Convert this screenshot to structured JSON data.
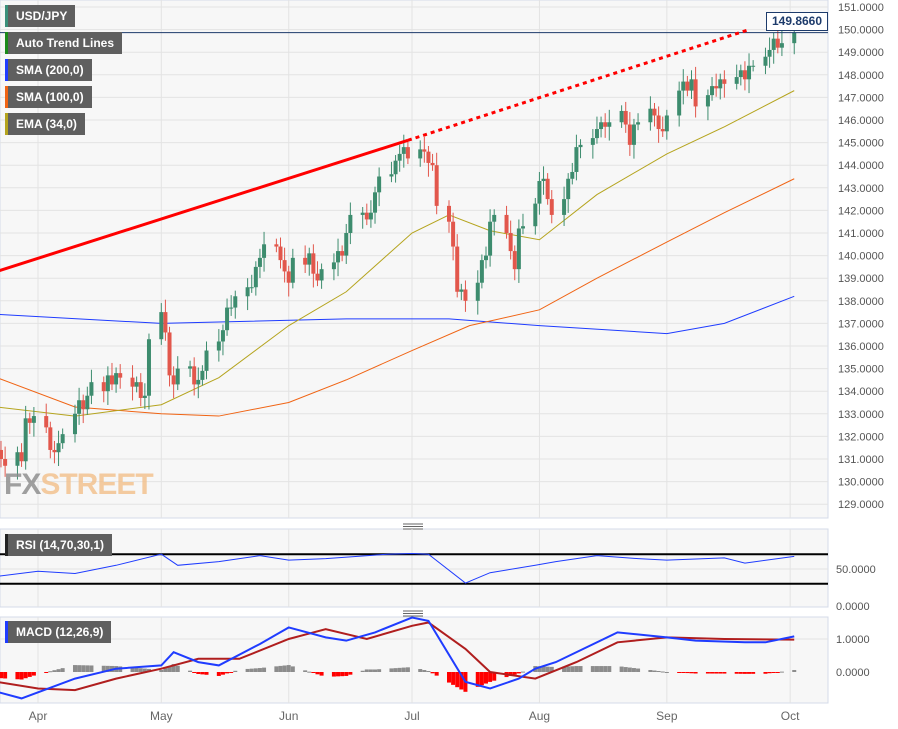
{
  "chart_data": {
    "type": "candlestick",
    "symbol": "USD/JPY",
    "start_date": "2023-03-22",
    "closes": [
      131.4,
      131.0,
      130.7,
      131.3,
      130.9,
      132.8,
      132.6,
      132.9,
      132.4,
      131.4,
      131.3,
      131.7,
      132.1,
      133.0,
      133.6,
      133.2,
      133.8,
      134.4,
      134.0,
      134.7,
      134.3,
      134.8,
      134.6,
      134.2,
      134.4,
      133.7,
      133.8,
      136.3,
      137.5,
      136.6,
      134.7,
      134.3,
      135.0,
      135.1,
      134.3,
      134.5,
      134.9,
      135.8,
      136.2,
      136.7,
      137.7,
      137.7,
      138.2,
      138.6,
      138.6,
      139.5,
      139.9,
      140.5,
      140.4,
      139.8,
      139.3,
      138.8,
      139.9,
      139.6,
      140.1,
      139.2,
      138.9,
      139.4,
      139.7,
      140.2,
      140.0,
      141.0,
      141.8,
      141.9,
      141.6,
      141.9,
      142.8,
      143.5,
      143.6,
      144.2,
      144.5,
      144.8,
      144.3,
      144.7,
      144.6,
      144.1,
      144.0,
      142.2,
      141.5,
      140.4,
      138.4,
      138.5,
      138.0,
      138.8,
      139.8,
      140.0,
      141.5,
      141.8,
      141.0,
      140.2,
      139.4,
      141.2,
      141.3,
      142.3,
      143.3,
      143.4,
      142.5,
      141.8,
      142.5,
      143.4,
      143.7,
      144.8,
      144.9,
      145.2,
      145.6,
      145.9,
      145.7,
      145.9,
      146.4,
      145.8,
      144.9,
      145.8,
      145.9,
      146.5,
      146.2,
      145.6,
      145.5,
      146.2,
      147.3,
      147.7,
      147.3,
      147.8,
      146.6,
      147.1,
      147.5,
      147.4,
      147.8,
      147.6,
      147.9,
      148.2,
      147.8,
      148.4,
      148.4,
      148.8,
      149.1,
      149.6,
      149.2,
      149.4,
      149.866
    ],
    "last_price": "149.8660",
    "price_axis": {
      "ylim": [
        128.5,
        151.3
      ],
      "ticks": [
        "151.0000",
        "150.0000",
        "149.0000",
        "148.0000",
        "147.0000",
        "146.0000",
        "145.0000",
        "144.0000",
        "143.0000",
        "142.0000",
        "141.0000",
        "140.0000",
        "139.0000",
        "138.0000",
        "137.0000",
        "136.0000",
        "135.0000",
        "134.0000",
        "133.0000",
        "132.0000",
        "131.0000",
        "130.0000",
        "129.0000"
      ]
    },
    "x_axis": {
      "ticks": [
        {
          "label": "Apr",
          "date": "2023-04-01"
        },
        {
          "label": "May",
          "date": "2023-05-01"
        },
        {
          "label": "Jun",
          "date": "2023-06-01"
        },
        {
          "label": "Jul",
          "date": "2023-07-01"
        },
        {
          "label": "Aug",
          "date": "2023-08-01"
        },
        {
          "label": "Sep",
          "date": "2023-09-01"
        },
        {
          "label": "Oct",
          "date": "2023-10-01"
        }
      ]
    },
    "trend_line": {
      "name": "Auto Trend Lines",
      "color": "#ff0000",
      "solid": [
        [
          "2023-03-22",
          139.3
        ],
        [
          "2023-06-30",
          145.1
        ]
      ],
      "dotted": [
        [
          "2023-06-30",
          145.1
        ],
        [
          "2023-09-21",
          150.0
        ]
      ]
    },
    "overlays": [
      {
        "name": "SMA (200,0)",
        "color": "#1f3cff",
        "points": [
          [
            "2023-03-22",
            137.4
          ],
          [
            "2023-05-01",
            137.0
          ],
          [
            "2023-06-15",
            137.2
          ],
          [
            "2023-07-10",
            137.2
          ],
          [
            "2023-08-01",
            136.9
          ],
          [
            "2023-09-01",
            136.55
          ],
          [
            "2023-09-15",
            137.0
          ],
          [
            "2023-10-02",
            138.2
          ]
        ]
      },
      {
        "name": "SMA (100,0)",
        "color": "#f06414",
        "points": [
          [
            "2023-03-22",
            134.6
          ],
          [
            "2023-04-10",
            133.3
          ],
          [
            "2023-05-01",
            133.0
          ],
          [
            "2023-05-15",
            132.9
          ],
          [
            "2023-06-01",
            133.5
          ],
          [
            "2023-06-15",
            134.5
          ],
          [
            "2023-07-01",
            135.8
          ],
          [
            "2023-07-15",
            136.9
          ],
          [
            "2023-08-01",
            137.6
          ],
          [
            "2023-08-15",
            139.0
          ],
          [
            "2023-09-01",
            140.6
          ],
          [
            "2023-09-15",
            141.9
          ],
          [
            "2023-10-02",
            143.4
          ]
        ]
      },
      {
        "name": "EMA (34,0)",
        "color": "#b5a41e",
        "points": [
          [
            "2023-03-22",
            133.3
          ],
          [
            "2023-04-10",
            132.9
          ],
          [
            "2023-05-01",
            133.4
          ],
          [
            "2023-05-15",
            134.6
          ],
          [
            "2023-06-01",
            136.9
          ],
          [
            "2023-06-15",
            138.4
          ],
          [
            "2023-07-01",
            141.0
          ],
          [
            "2023-07-10",
            141.8
          ],
          [
            "2023-07-20",
            141.1
          ],
          [
            "2023-08-01",
            140.7
          ],
          [
            "2023-08-15",
            142.7
          ],
          [
            "2023-09-01",
            144.5
          ],
          [
            "2023-09-15",
            145.7
          ],
          [
            "2023-10-02",
            147.3
          ]
        ]
      }
    ],
    "legend_colors": {
      "symbol": "#3a8f7a",
      "trend": "#1a8a1a"
    },
    "candle_colors": {
      "up": "#3d8c6e",
      "down": "#e2574c"
    },
    "rsi": {
      "name": "RSI (14,70,30,1)",
      "color": "#1f3cff",
      "levels": [
        70,
        30
      ],
      "ticks": [
        "50.0000",
        "0.0000"
      ],
      "points": [
        [
          "2023-03-22",
          40
        ],
        [
          "2023-04-01",
          47
        ],
        [
          "2023-04-10",
          44
        ],
        [
          "2023-04-20",
          55
        ],
        [
          "2023-05-01",
          70
        ],
        [
          "2023-05-05",
          55
        ],
        [
          "2023-05-15",
          60
        ],
        [
          "2023-05-25",
          68
        ],
        [
          "2023-06-01",
          62
        ],
        [
          "2023-06-10",
          64
        ],
        [
          "2023-06-25",
          70
        ],
        [
          "2023-07-01",
          71
        ],
        [
          "2023-07-05",
          70
        ],
        [
          "2023-07-14",
          31
        ],
        [
          "2023-07-20",
          45
        ],
        [
          "2023-07-31",
          55
        ],
        [
          "2023-08-05",
          60
        ],
        [
          "2023-08-15",
          68
        ],
        [
          "2023-08-25",
          64
        ],
        [
          "2023-09-01",
          62
        ],
        [
          "2023-09-15",
          65
        ],
        [
          "2023-09-20",
          58
        ],
        [
          "2023-10-02",
          67
        ]
      ]
    },
    "macd": {
      "name": "MACD (12,26,9)",
      "macd_color": "#1f3cff",
      "signal_color": "#b01e1e",
      "ticks": [
        "1.0000",
        "0.0000"
      ],
      "macd_points": [
        [
          "2023-03-22",
          -0.6
        ],
        [
          "2023-03-28",
          -0.8
        ],
        [
          "2023-04-10",
          -0.2
        ],
        [
          "2023-04-20",
          0.1
        ],
        [
          "2023-05-01",
          0.2
        ],
        [
          "2023-05-04",
          0.6
        ],
        [
          "2023-05-10",
          0.3
        ],
        [
          "2023-05-15",
          0.2
        ],
        [
          "2023-05-25",
          0.85
        ],
        [
          "2023-06-01",
          1.35
        ],
        [
          "2023-06-10",
          1.05
        ],
        [
          "2023-06-15",
          0.95
        ],
        [
          "2023-06-22",
          1.2
        ],
        [
          "2023-07-01",
          1.65
        ],
        [
          "2023-07-05",
          1.55
        ],
        [
          "2023-07-14",
          -0.3
        ],
        [
          "2023-07-20",
          -0.5
        ],
        [
          "2023-07-27",
          -0.2
        ],
        [
          "2023-07-31",
          0.1
        ],
        [
          "2023-08-05",
          0.3
        ],
        [
          "2023-08-20",
          1.2
        ],
        [
          "2023-09-01",
          1.05
        ],
        [
          "2023-09-08",
          0.95
        ],
        [
          "2023-09-20",
          0.9
        ],
        [
          "2023-09-25",
          0.9
        ],
        [
          "2023-10-02",
          1.08
        ]
      ],
      "signal_points": [
        [
          "2023-03-22",
          -0.3
        ],
        [
          "2023-04-01",
          -0.5
        ],
        [
          "2023-04-10",
          -0.55
        ],
        [
          "2023-04-20",
          -0.2
        ],
        [
          "2023-05-01",
          0.1
        ],
        [
          "2023-05-10",
          0.4
        ],
        [
          "2023-05-20",
          0.4
        ],
        [
          "2023-06-01",
          1.0
        ],
        [
          "2023-06-10",
          1.3
        ],
        [
          "2023-06-20",
          1.0
        ],
        [
          "2023-07-01",
          1.4
        ],
        [
          "2023-07-05",
          1.5
        ],
        [
          "2023-07-14",
          0.7
        ],
        [
          "2023-07-20",
          0.0
        ],
        [
          "2023-07-31",
          -0.2
        ],
        [
          "2023-08-10",
          0.3
        ],
        [
          "2023-08-20",
          0.9
        ],
        [
          "2023-09-01",
          1.05
        ],
        [
          "2023-09-15",
          1.0
        ],
        [
          "2023-10-02",
          0.98
        ]
      ],
      "hist_colors": {
        "positive": "#8c8c8c",
        "negative": "#ff0000"
      }
    }
  },
  "legends": {
    "symbol": "USD/JPY",
    "trend": "Auto Trend Lines",
    "sma200": "SMA (200,0)",
    "sma100": "SMA (100,0)",
    "ema34": "EMA (34,0)",
    "rsi": "RSI (14,70,30,1)",
    "macd": "MACD (12,26,9)"
  },
  "logo": {
    "fx": "FX",
    "street": "STREET"
  }
}
